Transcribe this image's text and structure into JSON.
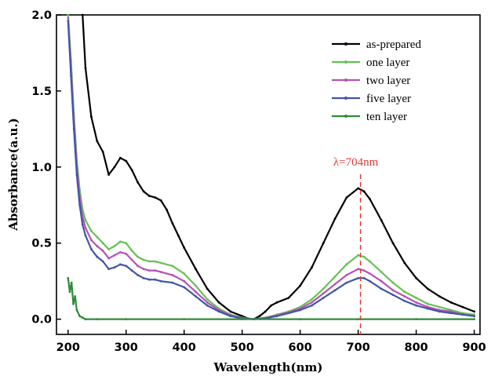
{
  "chart_data": {
    "type": "line",
    "title": "",
    "xlabel": "Wavelength(nm)",
    "ylabel": "Absorbance(a.u.)",
    "xlim": [
      180,
      910
    ],
    "ylim": [
      -0.1,
      2.0
    ],
    "x_ticks": [
      200,
      300,
      400,
      500,
      600,
      700,
      800,
      900
    ],
    "y_ticks": [
      0.0,
      0.5,
      1.0,
      1.5,
      2.0
    ],
    "x_tick_labels": [
      "200",
      "300",
      "400",
      "500",
      "600",
      "700",
      "800",
      "900"
    ],
    "y_tick_labels": [
      "0.0",
      "0.5",
      "1.0",
      "1.5",
      "2.0"
    ],
    "grid": false,
    "legend_position": "top-right",
    "annotation": {
      "text": "λ=704nm",
      "x": 704,
      "color": "#e53935"
    },
    "series": [
      {
        "name": "as-prepared",
        "color": "#000000",
        "x": [
          225,
          230,
          240,
          250,
          260,
          270,
          280,
          290,
          300,
          310,
          320,
          330,
          340,
          350,
          360,
          370,
          380,
          390,
          400,
          420,
          440,
          460,
          480,
          500,
          510,
          520,
          530,
          540,
          550,
          560,
          580,
          600,
          620,
          640,
          660,
          680,
          700,
          710,
          720,
          740,
          760,
          780,
          800,
          820,
          840,
          860,
          880,
          900
        ],
        "y": [
          2.0,
          1.65,
          1.33,
          1.17,
          1.1,
          0.95,
          1.0,
          1.06,
          1.04,
          0.98,
          0.9,
          0.84,
          0.81,
          0.8,
          0.78,
          0.72,
          0.63,
          0.55,
          0.47,
          0.33,
          0.2,
          0.11,
          0.05,
          0.02,
          0.005,
          0.0,
          0.02,
          0.05,
          0.09,
          0.11,
          0.14,
          0.22,
          0.34,
          0.5,
          0.66,
          0.8,
          0.86,
          0.84,
          0.79,
          0.65,
          0.5,
          0.37,
          0.27,
          0.2,
          0.15,
          0.11,
          0.08,
          0.05
        ]
      },
      {
        "name": "one layer",
        "color": "#66c153",
        "x": [
          200,
          205,
          210,
          215,
          220,
          225,
          230,
          240,
          250,
          260,
          270,
          280,
          290,
          300,
          310,
          320,
          330,
          340,
          350,
          360,
          380,
          400,
          420,
          440,
          460,
          480,
          500,
          520,
          540,
          560,
          580,
          600,
          620,
          640,
          660,
          680,
          700,
          710,
          720,
          740,
          760,
          780,
          800,
          820,
          840,
          860,
          880,
          900
        ],
        "y": [
          2.0,
          1.7,
          1.35,
          1.05,
          0.85,
          0.72,
          0.65,
          0.58,
          0.54,
          0.5,
          0.46,
          0.48,
          0.51,
          0.5,
          0.45,
          0.41,
          0.39,
          0.38,
          0.38,
          0.37,
          0.35,
          0.3,
          0.22,
          0.13,
          0.07,
          0.03,
          0.01,
          0.0,
          0.01,
          0.03,
          0.05,
          0.08,
          0.13,
          0.2,
          0.28,
          0.36,
          0.42,
          0.41,
          0.38,
          0.31,
          0.24,
          0.18,
          0.14,
          0.1,
          0.08,
          0.06,
          0.04,
          0.03
        ]
      },
      {
        "name": "two layer",
        "color": "#b552b5",
        "x": [
          200,
          205,
          210,
          215,
          220,
          225,
          230,
          240,
          250,
          260,
          270,
          280,
          290,
          300,
          310,
          320,
          330,
          340,
          350,
          360,
          380,
          400,
          420,
          440,
          460,
          480,
          500,
          520,
          540,
          560,
          580,
          600,
          620,
          640,
          660,
          680,
          700,
          710,
          720,
          740,
          760,
          780,
          800,
          820,
          840,
          860,
          880,
          900
        ],
        "y": [
          1.98,
          1.65,
          1.3,
          1.0,
          0.8,
          0.67,
          0.6,
          0.52,
          0.48,
          0.45,
          0.4,
          0.42,
          0.44,
          0.43,
          0.39,
          0.35,
          0.33,
          0.32,
          0.32,
          0.31,
          0.29,
          0.25,
          0.18,
          0.11,
          0.06,
          0.025,
          0.008,
          0.0,
          0.008,
          0.025,
          0.045,
          0.07,
          0.11,
          0.17,
          0.23,
          0.29,
          0.33,
          0.32,
          0.3,
          0.25,
          0.19,
          0.15,
          0.11,
          0.08,
          0.06,
          0.05,
          0.03,
          0.02
        ]
      },
      {
        "name": "five layer",
        "color": "#4155a8",
        "x": [
          200,
          205,
          210,
          215,
          220,
          225,
          230,
          240,
          250,
          260,
          270,
          280,
          290,
          300,
          310,
          320,
          330,
          340,
          350,
          360,
          380,
          400,
          420,
          440,
          460,
          480,
          500,
          520,
          540,
          560,
          580,
          600,
          620,
          640,
          660,
          680,
          700,
          710,
          720,
          740,
          760,
          780,
          800,
          820,
          840,
          860,
          880,
          900
        ],
        "y": [
          1.96,
          1.6,
          1.25,
          0.95,
          0.75,
          0.62,
          0.55,
          0.46,
          0.41,
          0.38,
          0.33,
          0.34,
          0.36,
          0.35,
          0.32,
          0.29,
          0.27,
          0.26,
          0.26,
          0.25,
          0.24,
          0.21,
          0.15,
          0.09,
          0.05,
          0.02,
          0.006,
          0.0,
          0.006,
          0.02,
          0.04,
          0.06,
          0.09,
          0.14,
          0.19,
          0.24,
          0.27,
          0.27,
          0.25,
          0.2,
          0.16,
          0.12,
          0.09,
          0.07,
          0.05,
          0.04,
          0.03,
          0.02
        ]
      },
      {
        "name": "ten layer",
        "color": "#2e8b3a",
        "x": [
          200,
          203,
          206,
          209,
          212,
          215,
          220,
          225,
          230,
          250,
          300,
          400,
          500,
          600,
          700,
          800,
          900
        ],
        "y": [
          0.27,
          0.18,
          0.24,
          0.1,
          0.15,
          0.06,
          0.02,
          0.01,
          0.0,
          0.0,
          0.0,
          0.0,
          0.0,
          0.0,
          0.0,
          0.0,
          0.0
        ]
      }
    ]
  }
}
